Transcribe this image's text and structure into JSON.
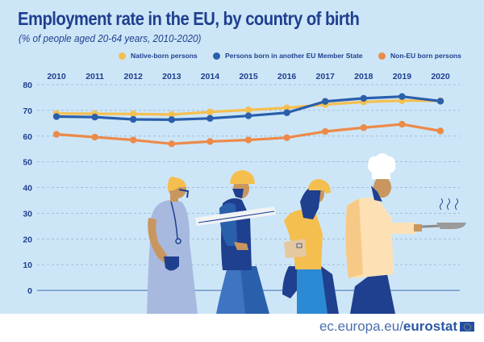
{
  "header": {
    "title": "Employment rate in the EU, by country of birth",
    "subtitle": "(% of people aged 20-64 years, 2010-2020)"
  },
  "footer": {
    "site": "ec.europa.eu/",
    "brand": "eurostat"
  },
  "colors": {
    "background": "#cde6f7",
    "text": "#1f3f8f",
    "native": "#f5bf4f",
    "other_eu": "#2a5fac",
    "non_eu": "#ec8a4a",
    "grid": "#8fb0d6",
    "zero_line": "#5b86bd"
  },
  "illustration": {
    "figures": [
      "doctor-figure",
      "construction-worker-figure",
      "delivery-worker-figure",
      "chef-figure"
    ]
  },
  "chart_data": {
    "type": "line",
    "title": "Employment rate in the EU, by country of birth",
    "subtitle": "(% of people aged 20-64 years, 2010-2020)",
    "xlabel": "",
    "ylabel": "",
    "x": [
      "2010",
      "2011",
      "2012",
      "2013",
      "2014",
      "2015",
      "2016",
      "2017",
      "2018",
      "2019",
      "2020"
    ],
    "ylim": [
      0,
      80
    ],
    "yticks": [
      "0",
      "10",
      "20",
      "30",
      "40",
      "50",
      "60",
      "70",
      "80"
    ],
    "grid": true,
    "legend_position": "top-right",
    "x_axis_position": "top",
    "series": [
      {
        "name": "Native-born persons",
        "color_key": "native",
        "values": [
          68.8,
          68.7,
          68.6,
          68.4,
          69.4,
          70.2,
          71.0,
          72.3,
          73.3,
          73.8,
          73.7
        ]
      },
      {
        "name": "Persons born in another EU Member State",
        "color_key": "other_eu",
        "values": [
          67.6,
          67.4,
          66.5,
          66.4,
          66.9,
          67.9,
          69.1,
          73.5,
          74.7,
          75.4,
          73.6
        ]
      },
      {
        "name": "Non-EU born persons",
        "color_key": "non_eu",
        "values": [
          60.7,
          59.6,
          58.5,
          57.0,
          57.9,
          58.5,
          59.4,
          61.8,
          63.3,
          64.6,
          62.0
        ]
      }
    ]
  }
}
